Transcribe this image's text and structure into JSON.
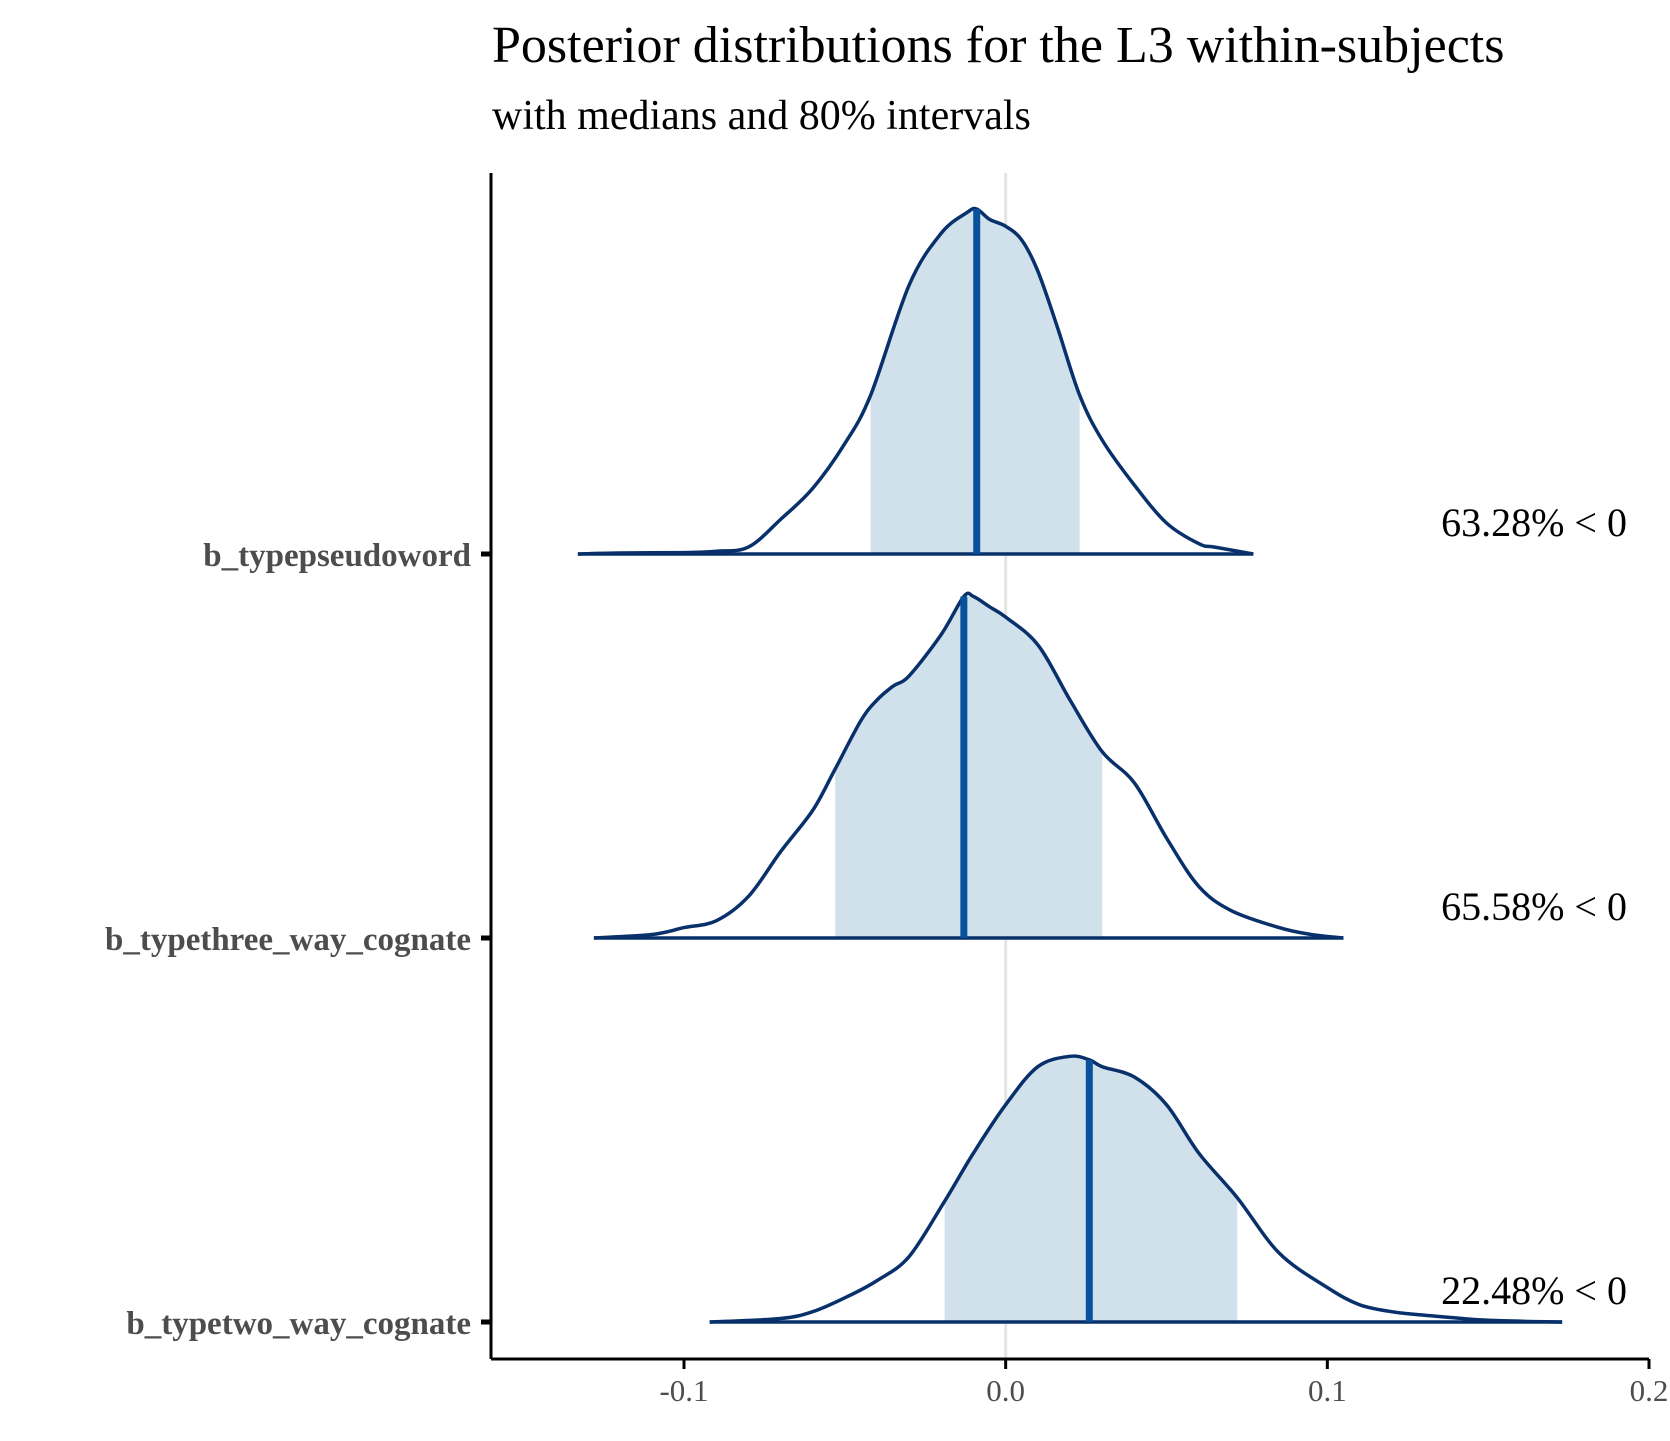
{
  "chart_data": {
    "type": "area",
    "title": "Posterior distributions for the L3 within-subjects",
    "subtitle": "with medians and 80% intervals",
    "xlabel": "",
    "ylabel": "",
    "xlim": [
      -0.16,
      0.2
    ],
    "x_ticks": [
      "-0.1",
      "0.0",
      "0.1",
      "0.2"
    ],
    "reference_line_x": 0.0,
    "grid": false,
    "colors": {
      "outline": "#08306b",
      "interval_fill": "#d1e1ec",
      "median": "#08519c",
      "reference": "#e5e5e5",
      "axis": "#000000"
    },
    "series": [
      {
        "name": "b_typepseudoword",
        "median": -0.009,
        "interval_80": [
          -0.042,
          0.023
        ],
        "annotation": "63.28% < 0",
        "density": [
          [
            -0.133,
            0.0
          ],
          [
            -0.12,
            0.003
          ],
          [
            -0.1,
            0.004
          ],
          [
            -0.09,
            0.008
          ],
          [
            -0.08,
            0.02
          ],
          [
            -0.07,
            0.1
          ],
          [
            -0.06,
            0.19
          ],
          [
            -0.05,
            0.32
          ],
          [
            -0.042,
            0.46
          ],
          [
            -0.03,
            0.78
          ],
          [
            -0.02,
            0.93
          ],
          [
            -0.012,
            0.99
          ],
          [
            -0.009,
            1.0
          ],
          [
            -0.005,
            0.97
          ],
          [
            0.0,
            0.95
          ],
          [
            0.005,
            0.91
          ],
          [
            0.01,
            0.82
          ],
          [
            0.016,
            0.66
          ],
          [
            0.023,
            0.46
          ],
          [
            0.03,
            0.33
          ],
          [
            0.04,
            0.2
          ],
          [
            0.05,
            0.09
          ],
          [
            0.06,
            0.03
          ],
          [
            0.065,
            0.02
          ],
          [
            0.077,
            0.0
          ]
        ]
      },
      {
        "name": "b_typethree_way_cognate",
        "median": -0.013,
        "interval_80": [
          -0.053,
          0.03
        ],
        "annotation": "65.58% < 0",
        "density": [
          [
            -0.128,
            0.0
          ],
          [
            -0.11,
            0.01
          ],
          [
            -0.1,
            0.03
          ],
          [
            -0.09,
            0.05
          ],
          [
            -0.08,
            0.12
          ],
          [
            -0.07,
            0.25
          ],
          [
            -0.06,
            0.37
          ],
          [
            -0.053,
            0.49
          ],
          [
            -0.045,
            0.63
          ],
          [
            -0.04,
            0.69
          ],
          [
            -0.035,
            0.73
          ],
          [
            -0.03,
            0.76
          ],
          [
            -0.02,
            0.88
          ],
          [
            -0.013,
            0.99
          ],
          [
            -0.01,
            0.99
          ],
          [
            -0.005,
            0.96
          ],
          [
            0.0,
            0.93
          ],
          [
            0.01,
            0.85
          ],
          [
            0.02,
            0.69
          ],
          [
            0.03,
            0.54
          ],
          [
            0.04,
            0.45
          ],
          [
            0.05,
            0.29
          ],
          [
            0.06,
            0.15
          ],
          [
            0.07,
            0.08
          ],
          [
            0.085,
            0.03
          ],
          [
            0.095,
            0.01
          ],
          [
            0.105,
            0.0
          ]
        ]
      },
      {
        "name": "b_typetwo_way_cognate",
        "median": 0.026,
        "interval_80": [
          -0.019,
          0.072
        ],
        "annotation": "22.48% < 0",
        "density": [
          [
            -0.092,
            0.0
          ],
          [
            -0.07,
            0.01
          ],
          [
            -0.06,
            0.03
          ],
          [
            -0.05,
            0.07
          ],
          [
            -0.04,
            0.12
          ],
          [
            -0.03,
            0.19
          ],
          [
            -0.019,
            0.35
          ],
          [
            -0.01,
            0.49
          ],
          [
            0.0,
            0.63
          ],
          [
            0.01,
            0.74
          ],
          [
            0.02,
            0.77
          ],
          [
            0.026,
            0.76
          ],
          [
            0.03,
            0.74
          ],
          [
            0.04,
            0.71
          ],
          [
            0.05,
            0.63
          ],
          [
            0.06,
            0.49
          ],
          [
            0.072,
            0.36
          ],
          [
            0.085,
            0.2
          ],
          [
            0.1,
            0.1
          ],
          [
            0.11,
            0.05
          ],
          [
            0.12,
            0.03
          ],
          [
            0.13,
            0.02
          ],
          [
            0.15,
            0.005
          ],
          [
            0.173,
            0.0
          ]
        ]
      }
    ]
  }
}
